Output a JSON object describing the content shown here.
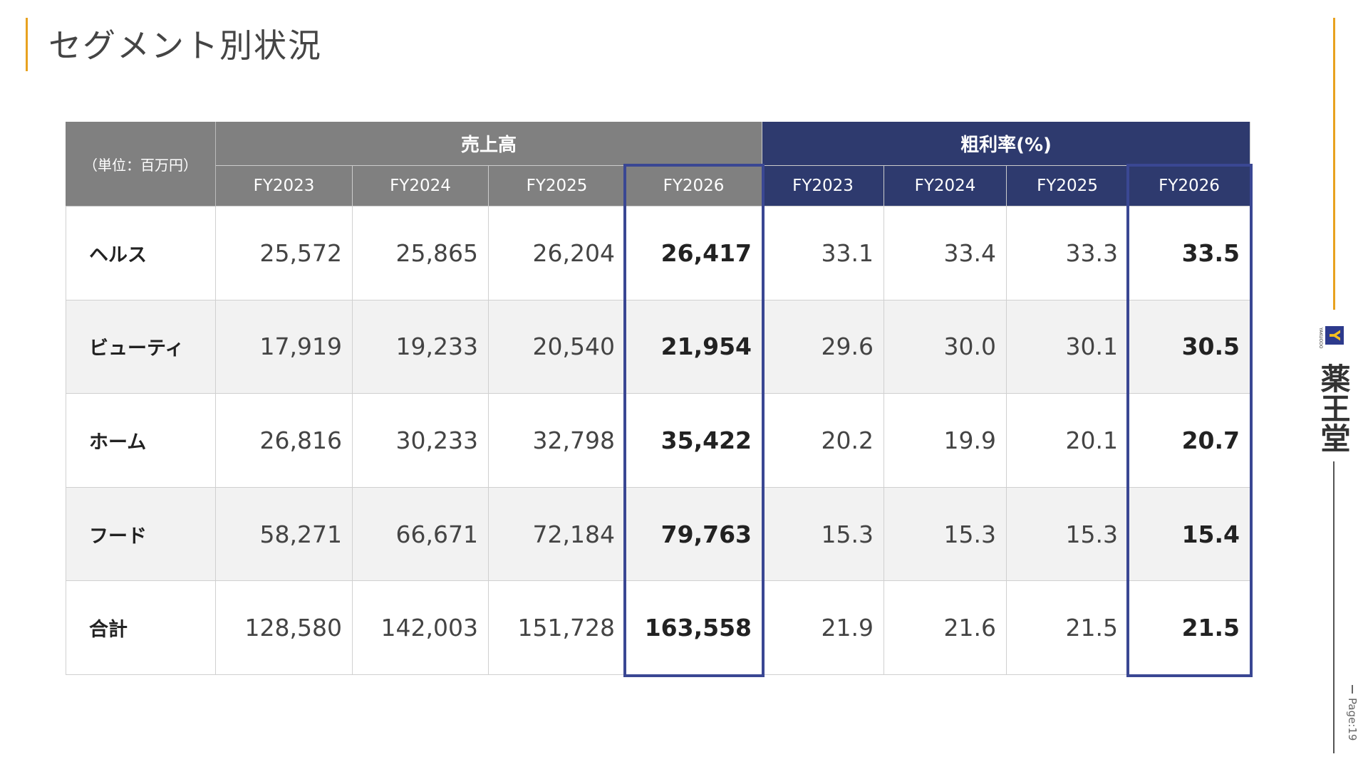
{
  "header": {
    "title": "セグメント別状況"
  },
  "table": {
    "unit_label": "（単位：百万円）",
    "groups": [
      {
        "label": "売上高",
        "columns": [
          "FY2023",
          "FY2024",
          "FY2025",
          "FY2026"
        ]
      },
      {
        "label": "粗利率(%)",
        "columns": [
          "FY2023",
          "FY2024",
          "FY2025",
          "FY2026"
        ]
      }
    ],
    "rows": [
      {
        "label": "ヘルス",
        "sales": [
          "25,572",
          "25,865",
          "26,204",
          "26,417"
        ],
        "margin": [
          "33.1",
          "33.4",
          "33.3",
          "33.5"
        ]
      },
      {
        "label": "ビューティ",
        "sales": [
          "17,919",
          "19,233",
          "20,540",
          "21,954"
        ],
        "margin": [
          "29.6",
          "30.0",
          "30.1",
          "30.5"
        ]
      },
      {
        "label": "ホーム",
        "sales": [
          "26,816",
          "30,233",
          "32,798",
          "35,422"
        ],
        "margin": [
          "20.2",
          "19.9",
          "20.1",
          "20.7"
        ]
      },
      {
        "label": "フード",
        "sales": [
          "58,271",
          "66,671",
          "72,184",
          "79,763"
        ],
        "margin": [
          "15.3",
          "15.3",
          "15.3",
          "15.4"
        ]
      },
      {
        "label": "合計",
        "sales": [
          "128,580",
          "142,003",
          "151,728",
          "163,558"
        ],
        "margin": [
          "21.9",
          "21.6",
          "21.5",
          "21.5"
        ]
      }
    ]
  },
  "sidebar": {
    "logo_mark": "Y",
    "logo_sub": "YAKUODO",
    "logo_text": "薬王堂",
    "page": "Page:19"
  }
}
